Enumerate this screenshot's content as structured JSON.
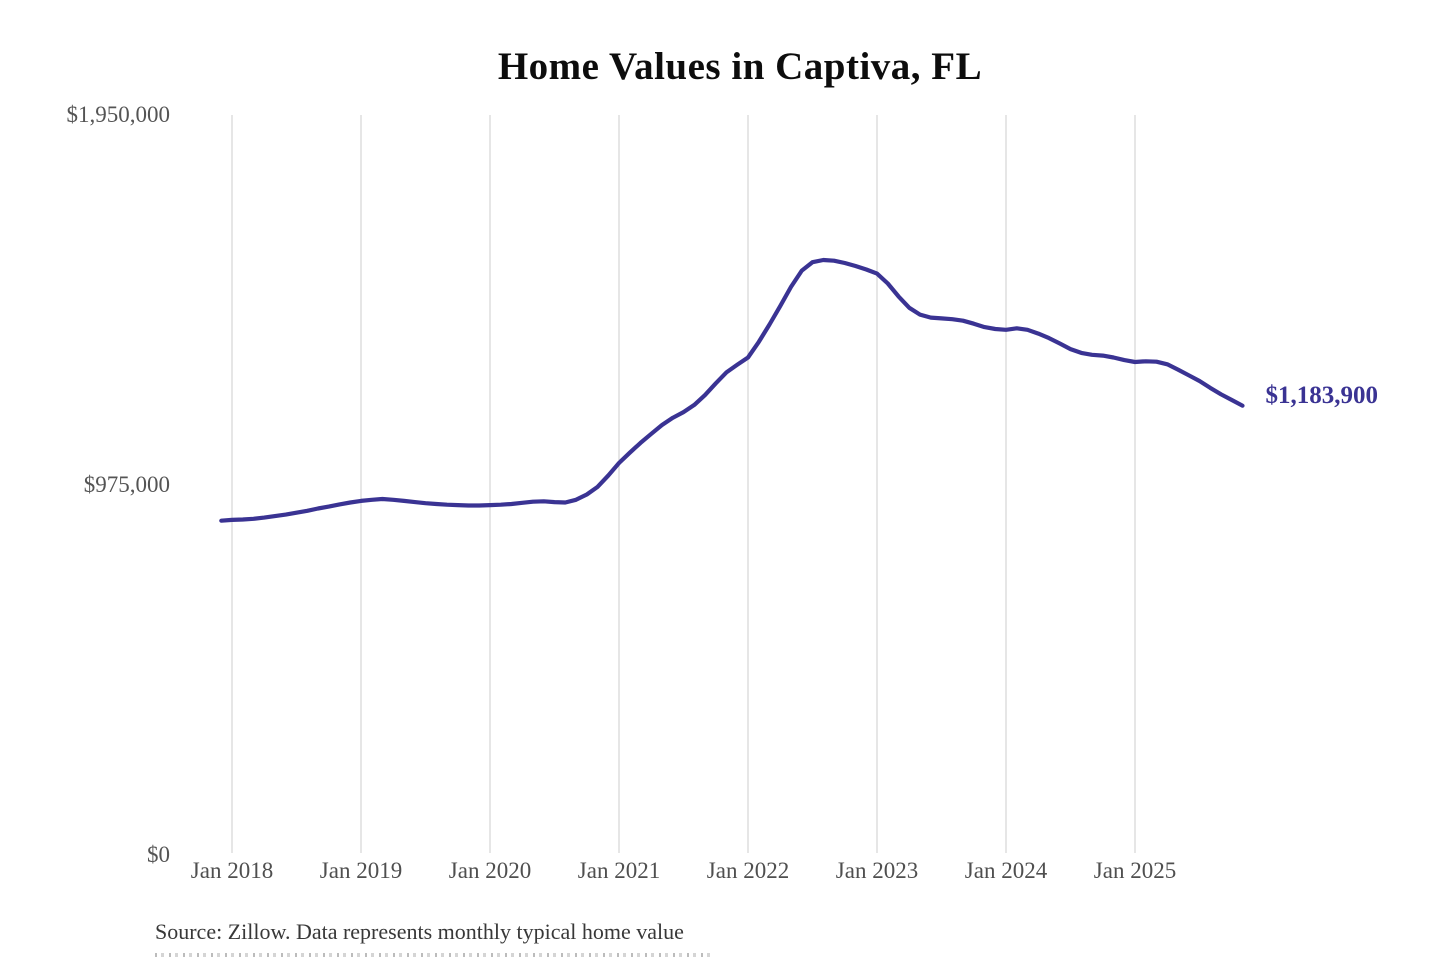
{
  "title": "Home Values in Captiva, FL",
  "source_note": "Source: Zillow. Data represents monthly typical home value",
  "colors": {
    "line": "#3a3393",
    "end_label": "#3a3393",
    "grid": "#cccccc",
    "title_text": "#0d0d0d",
    "axis_text": "#4f4f4f",
    "source_text": "#383838"
  },
  "chart_data": {
    "type": "line",
    "title": "Home Values in Captiva, FL",
    "xlabel": "",
    "ylabel": "",
    "x_frequency": "monthly",
    "x_start": "Dec 2017",
    "x_end": "Nov 2025",
    "x_tick_labels": [
      "Jan 2018",
      "Jan 2019",
      "Jan 2020",
      "Jan 2021",
      "Jan 2022",
      "Jan 2023",
      "Jan 2024",
      "Jan 2025"
    ],
    "y_tick_labels": [
      "$0",
      "$975,000",
      "$1,950,000"
    ],
    "y_tick_values": [
      0,
      975000,
      1950000
    ],
    "ylim": [
      0,
      1950000
    ],
    "grid": "vertical-only",
    "legend": "none",
    "last_point_label": "$1,183,900",
    "last_value": 1183900,
    "series": [
      {
        "name": "Monthly typical home value",
        "color": "#3a3393",
        "values": [
          881000,
          883000,
          884000,
          886000,
          889000,
          893000,
          897000,
          902000,
          907000,
          913000,
          918000,
          924000,
          929000,
          933000,
          936000,
          938000,
          936000,
          933000,
          930000,
          927000,
          925000,
          923000,
          922000,
          921000,
          921000,
          922000,
          923000,
          925000,
          928000,
          931000,
          932000,
          930000,
          929000,
          936000,
          950000,
          970000,
          1000000,
          1033000,
          1060000,
          1086000,
          1110000,
          1133000,
          1152000,
          1167000,
          1186000,
          1212000,
          1243000,
          1272000,
          1292000,
          1311000,
          1352000,
          1398000,
          1447000,
          1497000,
          1540000,
          1562000,
          1568000,
          1566000,
          1560000,
          1552000,
          1543000,
          1532000,
          1506000,
          1472000,
          1442000,
          1424000,
          1416000,
          1414000,
          1412000,
          1408000,
          1400000,
          1391000,
          1386000,
          1384000,
          1388000,
          1384000,
          1374000,
          1362000,
          1348000,
          1333000,
          1323000,
          1318000,
          1316000,
          1311000,
          1304000,
          1299000,
          1301000,
          1300000,
          1293000,
          1279000,
          1264000,
          1249000,
          1231000,
          1214000,
          1199000,
          1183900
        ]
      }
    ]
  }
}
